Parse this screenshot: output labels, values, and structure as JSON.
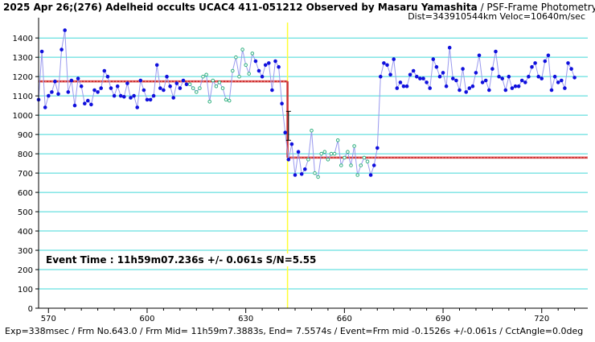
{
  "header": {
    "title_main": "2025 Apr 26;(276) Adelheid occults UCAC4 411-051212 Observed by Masaru Yamashita",
    "title_sub": " / PSF-Frame Photometry /",
    "title_line2": "Dist=343910544km Veloc=10640m/sec"
  },
  "footer": {
    "text": "Exp=338msec / Frm No.643.0 / Frm Mid= 11h59m7.3883s,  End= 7.5574s / Event=Frm mid -0.1526s +/-0.061s / CctAngle=0.0deg"
  },
  "annotation": {
    "event_text": "Event Time : 11h59m07.236s  +/- 0.061s  S/N=5.55"
  },
  "colors": {
    "grid": "#40d8d8",
    "line": "#9999ee",
    "point_blue": "#1010dd",
    "point_green": "#30b080",
    "fit": "#cc3333",
    "event_line": "#ffff33"
  },
  "chart_data": {
    "type": "line",
    "xlim": [
      567,
      734
    ],
    "ylim": [
      0,
      1480
    ],
    "xticks": [
      570,
      600,
      630,
      660,
      690,
      720
    ],
    "yticks": [
      0,
      100,
      200,
      300,
      400,
      500,
      600,
      700,
      800,
      900,
      1000,
      1100,
      1200,
      1300,
      1400
    ],
    "event_frame": 642.7,
    "fit_high": 1175,
    "fit_low": 780,
    "error_bar": {
      "x": 643,
      "y_low": 870,
      "y_high": 1020
    },
    "x_start": 567,
    "values": [
      1080,
      1330,
      1040,
      1100,
      1120,
      1175,
      1110,
      1340,
      1440,
      1120,
      1180,
      1050,
      1190,
      1150,
      1060,
      1075,
      1055,
      1130,
      1120,
      1140,
      1230,
      1200,
      1140,
      1100,
      1150,
      1100,
      1095,
      1165,
      1090,
      1100,
      1040,
      1180,
      1130,
      1080,
      1080,
      1100,
      1260,
      1140,
      1130,
      1200,
      1150,
      1090,
      1165,
      1140,
      1180,
      1160,
      1160,
      1140,
      1120,
      1140,
      1200,
      1210,
      1070,
      1180,
      1150,
      1170,
      1140,
      1080,
      1075,
      1230,
      1300,
      1200,
      1340,
      1260,
      1215,
      1320,
      1280,
      1230,
      1200,
      1260,
      1270,
      1130,
      1280,
      1250,
      1060,
      910,
      770,
      850,
      690,
      810,
      695,
      720,
      770,
      920,
      700,
      680,
      800,
      810,
      770,
      800,
      800,
      870,
      740,
      780,
      810,
      740,
      840,
      690,
      740,
      780,
      760,
      690,
      740,
      830,
      1200,
      1270,
      1260,
      1210,
      1290,
      1140,
      1170,
      1150,
      1150,
      1210,
      1230,
      1200,
      1190,
      1190,
      1170,
      1140,
      1290,
      1250,
      1200,
      1220,
      1150,
      1350,
      1190,
      1180,
      1130,
      1240,
      1120,
      1140,
      1150,
      1220,
      1310,
      1170,
      1180,
      1130,
      1240,
      1330,
      1200,
      1190,
      1130,
      1200,
      1140,
      1150,
      1150,
      1180,
      1170,
      1200,
      1250,
      1270,
      1200,
      1190,
      1280,
      1310,
      1130,
      1200,
      1170,
      1180,
      1140,
      1270,
      1240,
      1195
    ],
    "point_colors": [
      "b",
      "b",
      "b",
      "b",
      "b",
      "b",
      "b",
      "b",
      "b",
      "b",
      "b",
      "b",
      "b",
      "b",
      "b",
      "b",
      "b",
      "b",
      "b",
      "b",
      "b",
      "b",
      "b",
      "b",
      "b",
      "b",
      "b",
      "b",
      "b",
      "b",
      "b",
      "b",
      "b",
      "b",
      "b",
      "b",
      "b",
      "b",
      "b",
      "b",
      "b",
      "b",
      "b",
      "b",
      "b",
      "b",
      "g",
      "g",
      "g",
      "g",
      "g",
      "g",
      "g",
      "g",
      "g",
      "g",
      "g",
      "g",
      "g",
      "g",
      "g",
      "g",
      "g",
      "g",
      "g",
      "g",
      "b",
      "b",
      "b",
      "b",
      "b",
      "b",
      "b",
      "b",
      "b",
      "b",
      "b",
      "b",
      "b",
      "b",
      "b",
      "b",
      "g",
      "g",
      "g",
      "g",
      "g",
      "g",
      "g",
      "g",
      "g",
      "g",
      "g",
      "g",
      "g",
      "g",
      "g",
      "g",
      "g",
      "g",
      "g",
      "b",
      "b",
      "b",
      "b",
      "b",
      "b",
      "b",
      "b",
      "b",
      "b",
      "b",
      "b",
      "b",
      "b",
      "b",
      "b",
      "b",
      "b",
      "b",
      "b",
      "b",
      "b",
      "b",
      "b",
      "b",
      "b",
      "b",
      "b",
      "b",
      "b",
      "b",
      "b",
      "b",
      "b",
      "b",
      "b",
      "b",
      "b",
      "b",
      "b",
      "b",
      "b",
      "b",
      "b",
      "b",
      "b",
      "b",
      "b",
      "b",
      "b",
      "b",
      "b",
      "b",
      "b",
      "b",
      "b",
      "b",
      "b",
      "b",
      "b",
      "b",
      "b",
      "b",
      "b",
      "b",
      "b",
      "b",
      "b",
      "b",
      "b",
      "b",
      "b",
      "b",
      "b",
      "b"
    ]
  }
}
